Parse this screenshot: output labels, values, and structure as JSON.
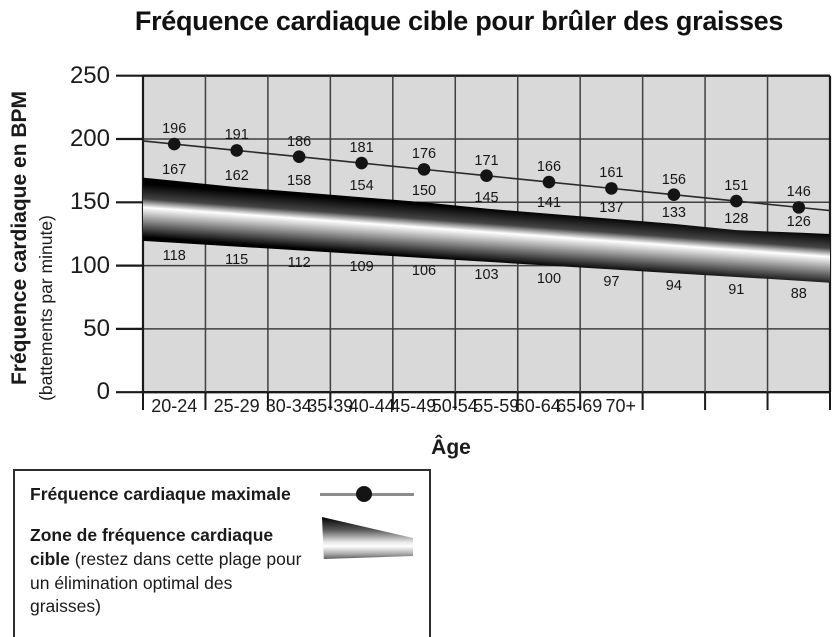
{
  "title": "Fréquence cardiaque cible pour brûler des graisses",
  "chart_data": {
    "type": "line",
    "title": "Fréquence cardiaque cible pour brûler des graisses",
    "xlabel": "Âge",
    "ylabel": "Fréquence cardiaque en BPM",
    "ylabel_sub": "(battements par minute)",
    "ylim": [
      0,
      250
    ],
    "yticks": [
      0,
      50,
      100,
      150,
      200,
      250
    ],
    "grid": true,
    "legend_position": "bottom-left",
    "categories": [
      "20-24",
      "25-29",
      "30-34",
      "35-39",
      "40-44",
      "45-49",
      "50-54",
      "55-59",
      "60-64",
      "65-69",
      "70+"
    ],
    "series": [
      {
        "name": "Fréquence cardiaque maximale",
        "type": "line-with-dots",
        "values": [
          196,
          191,
          186,
          181,
          176,
          171,
          166,
          161,
          156,
          151,
          146
        ]
      },
      {
        "name": "Zone de fréquence cardiaque cible",
        "type": "band",
        "upper": [
          167,
          162,
          158,
          154,
          150,
          145,
          141,
          137,
          133,
          128,
          126
        ],
        "lower": [
          118,
          115,
          112,
          109,
          106,
          103,
          100,
          97,
          94,
          91,
          88
        ]
      }
    ]
  },
  "legend": {
    "max_label": "Fréquence cardiaque maximale",
    "zone_label_bold": "Zone de fréquence cardiaque cible",
    "zone_label_rest": " (restez dans cette plage pour un élimination optimal des graisses)"
  },
  "colors": {
    "plot_bg": "#d9d9d9",
    "grid_line": "#3f3f3f",
    "axis_line": "#1a1a1a",
    "series_line": "#2a2a2a",
    "dot": "#141414",
    "legend_line": "#8c8c8c",
    "band_dark": "#000000",
    "band_light": "#ffffff"
  }
}
